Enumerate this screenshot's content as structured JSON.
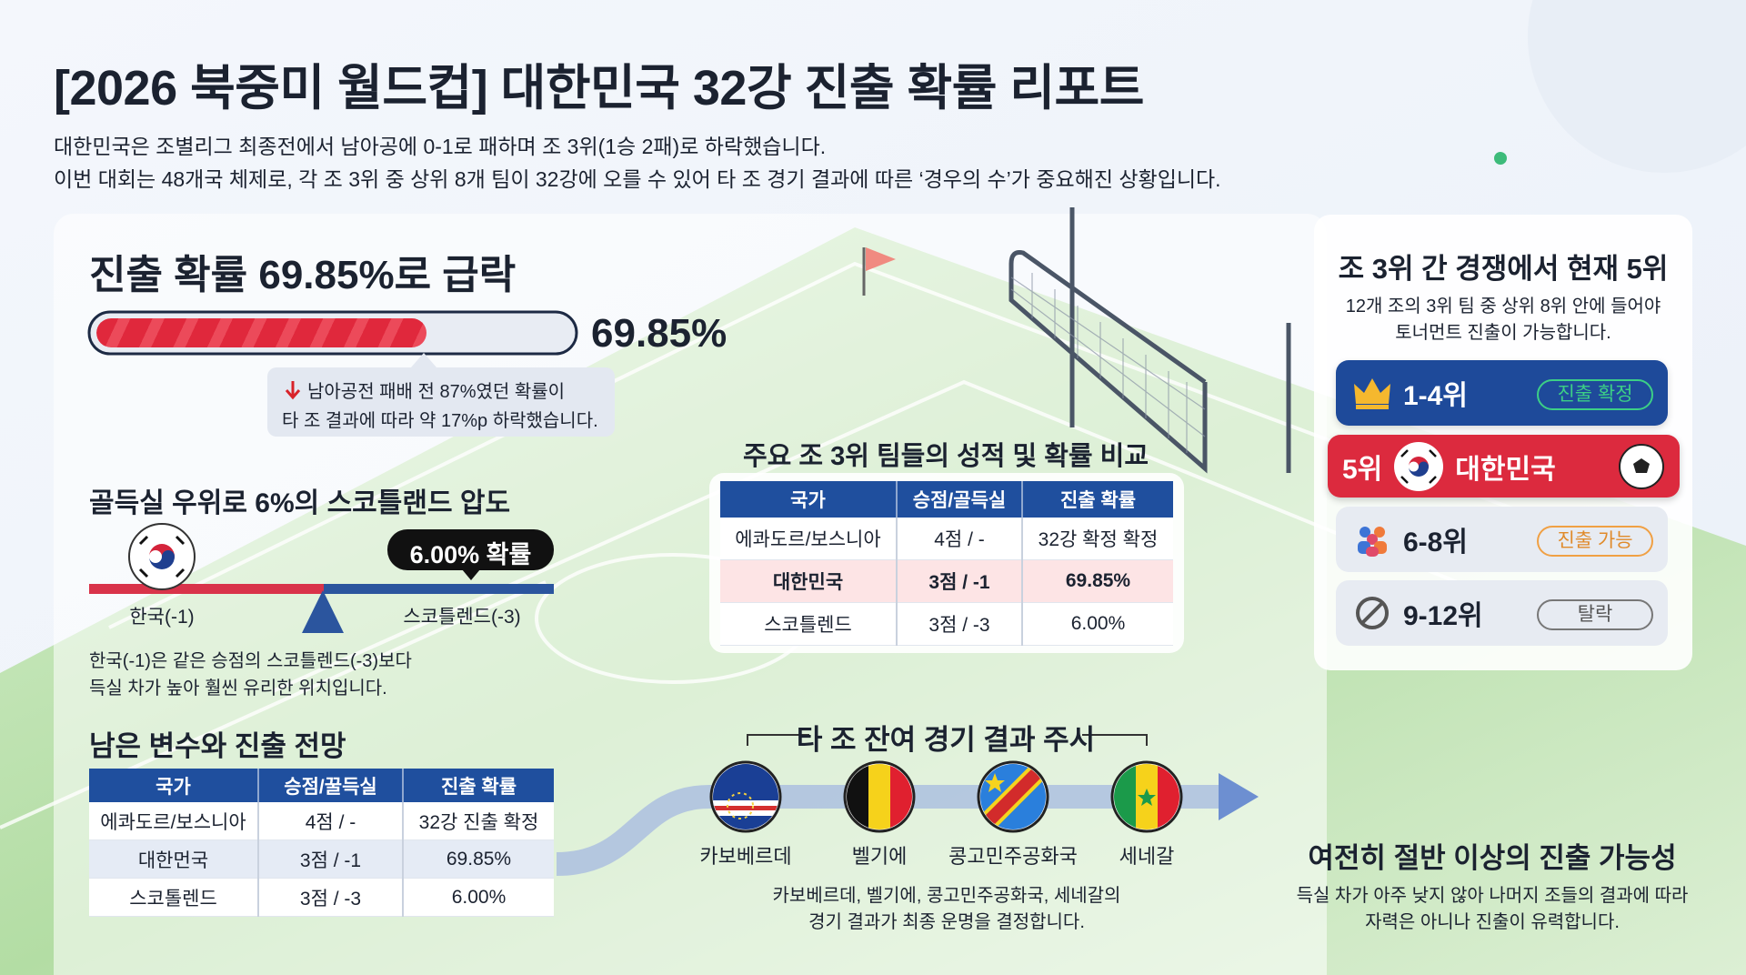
{
  "header": {
    "title": "[2026 북중미 월드컵] 대한민국 32강 진출 확률 리포트",
    "subtitle": [
      "대한민국은 조별리그 최종전에서 남아공에 0-1로 패하며 조 3위(1승 2패)로 하락했습니다.",
      "이번 대회는 48개국 체제로, 각 조 3위 중 상위 8개 팀이 32강에 오를 수 있어 타 조 경기 결과에 따른 ‘경우의 수’가 중요해진 상황입니다."
    ]
  },
  "probability": {
    "heading": "진출 확률 69.85%로 급락",
    "value": 69.85,
    "label": "69.85%",
    "note": [
      "남아공전 패배 전 87%였던 확률이",
      "타 조 결과에 따라 약 17%p 하락했습니다."
    ]
  },
  "goal_difference": {
    "heading": "골득실 우위로 6%의 스코틀랜드 압도",
    "badge": "6.00% 확률",
    "left_label": "한국(-1)",
    "right_label": "스코틀렌드(-3)",
    "description": [
      "한국(-1)은 같은 승점의 스코틀렌드(-3)보다",
      "득실 차가 높아 훨씬 유리한 위치입니다."
    ]
  },
  "outlook": {
    "heading": "남은 변수와 진출 전망",
    "table": {
      "header": [
        "국가",
        "승점/꿀득실",
        "진출 확률"
      ],
      "rows": [
        [
          "에콰도르/보스니아",
          "4점 / -",
          "32강 진출 확정"
        ],
        [
          "대한먼국",
          "3점 / -1",
          "69.85%"
        ],
        [
          "스코톨렌드",
          "3점 / -3",
          "6.00%"
        ]
      ]
    }
  },
  "comparison": {
    "heading": "주요 조 3위 팀들의 성적 및 확률 비교",
    "table": {
      "header": [
        "국가",
        "승점/골득실",
        "진출 확률"
      ],
      "rows": [
        [
          "에콰도르/보스니아",
          "4점 / -",
          "32강 확정 확정"
        ],
        [
          "대한민국",
          "3점 / -1",
          "69.85%"
        ],
        [
          "스코틀렌드",
          "3점 / -3",
          "6.00%"
        ]
      ]
    }
  },
  "ranking": {
    "heading": "조 3위 간 경쟁에서 현재 5위",
    "description": [
      "12개 조의 3위 팀 중 상위 8위 안에 들어야",
      "토너먼트 진출이 가능합니다."
    ],
    "tiers": [
      {
        "rank": "1-4위",
        "status": "진출 확정"
      },
      {
        "rank": "5위",
        "team": "대한민국"
      },
      {
        "rank": "6-8위",
        "status": "진출 가능"
      },
      {
        "rank": "9-12위",
        "status": "탈락"
      }
    ]
  },
  "watch": {
    "heading": "타 조 잔여 경기 결과 주시",
    "teams": [
      "카보베르데",
      "벨기에",
      "콩고민주공화국",
      "세네갈"
    ],
    "description": [
      "카보베르데, 벨기에, 콩고민주공화국, 세네갈의",
      "경기 결과가 최종 운명을 결정합니다."
    ]
  },
  "conclusion": {
    "heading": "여전히 절반 이상의 진출 가능성",
    "description": [
      "득실 차가 아주 낮지 않아 나머지 조들의 결과에 따라",
      "자력은 아니나 진출이 유력합니다."
    ]
  }
}
